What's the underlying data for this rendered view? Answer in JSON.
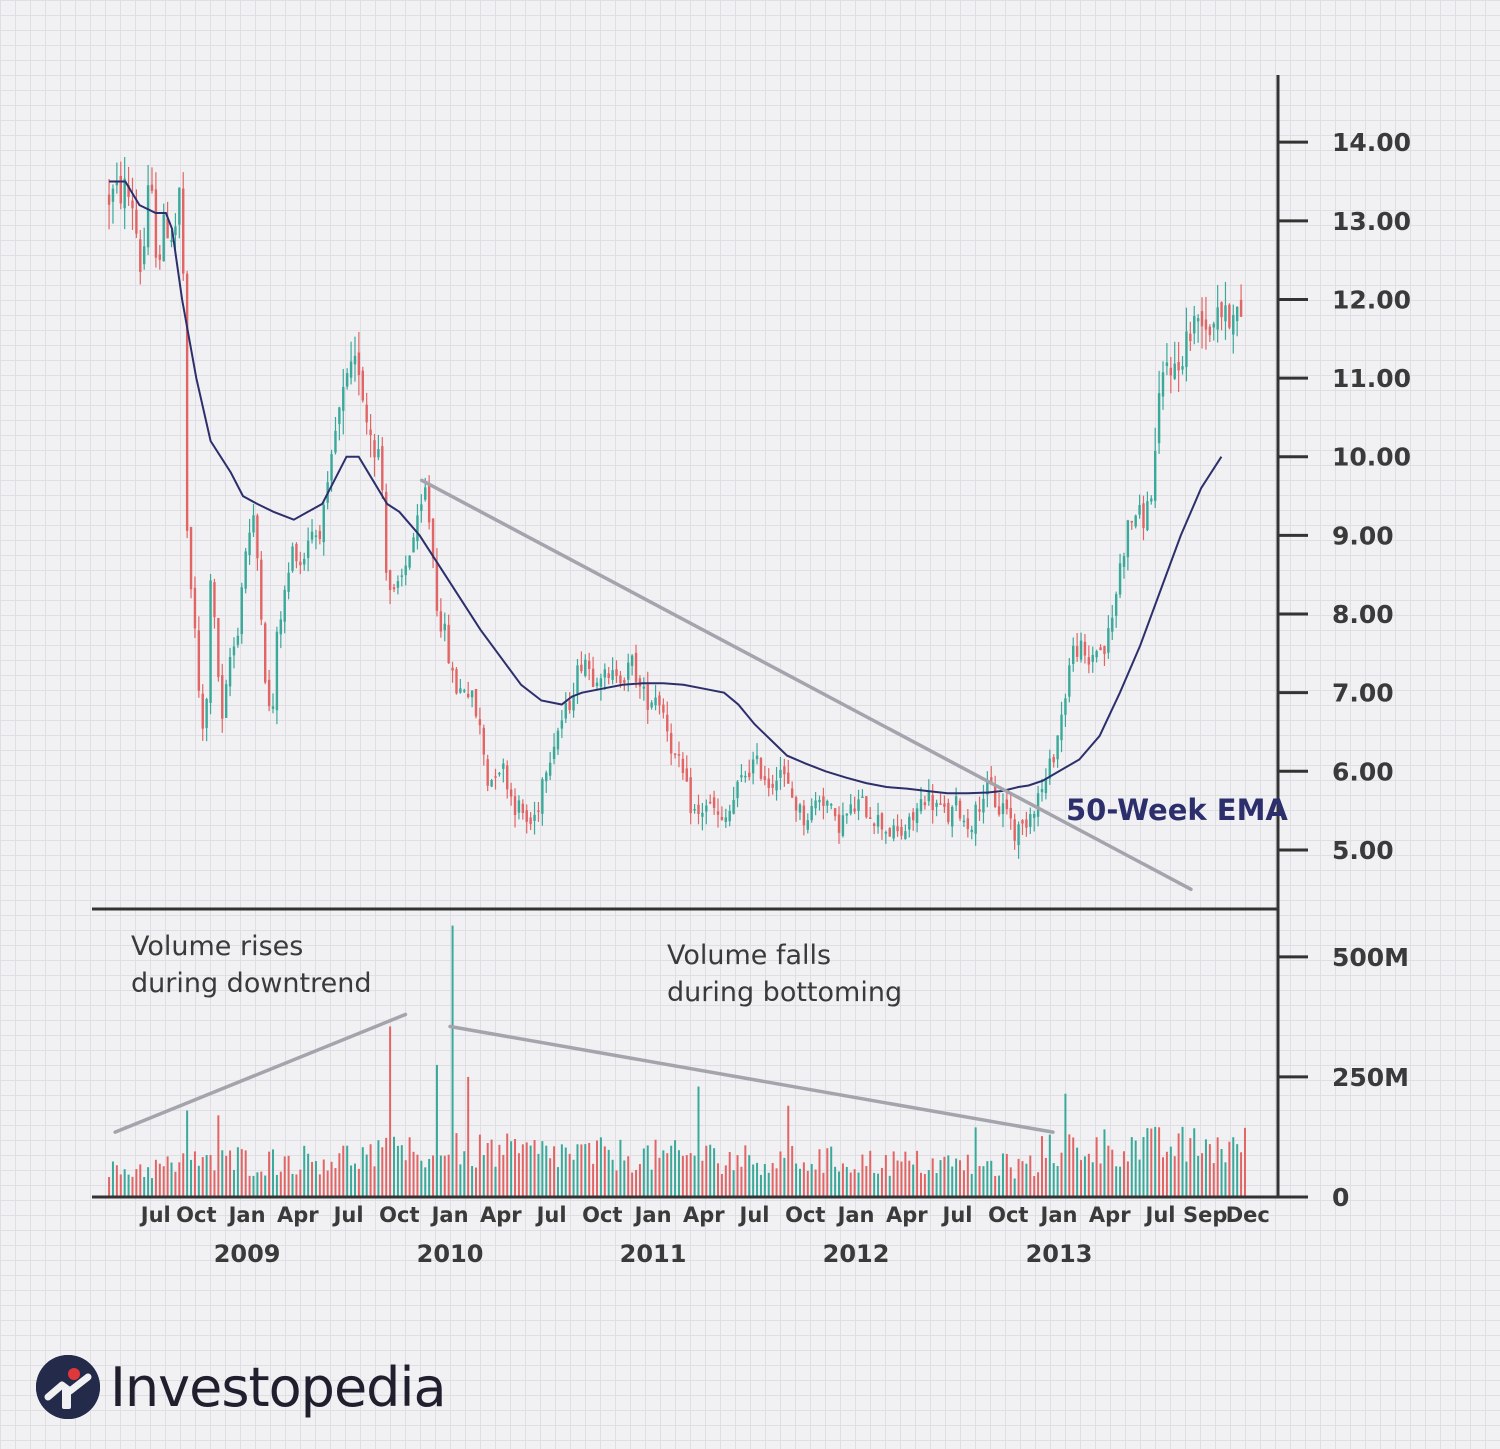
{
  "brand": {
    "name": "Investopedia",
    "accent": "#e0373b",
    "dark": "#232a4a"
  },
  "colors": {
    "up": "#3aa99a",
    "down": "#e26566",
    "ema": "#2c2f6b",
    "trendline": "#a4a4ad",
    "axis": "#333333"
  },
  "chart_data": {
    "type": "candlestick",
    "title": "",
    "price_axis": {
      "ylim": [
        4.3,
        14.6
      ],
      "ticks": [
        "5.00",
        "6.00",
        "7.00",
        "8.00",
        "9.00",
        "10.00",
        "11.00",
        "12.00",
        "13.00",
        "14.00"
      ]
    },
    "volume_axis": {
      "ylim": [
        0,
        560
      ],
      "unit": "M",
      "ticks": [
        {
          "value": 0,
          "label": "0"
        },
        {
          "value": 250,
          "label": "250M"
        },
        {
          "value": 500,
          "label": "500M"
        }
      ]
    },
    "x_range": [
      2008.3,
      2014.0
    ],
    "x_ticks": [
      {
        "x": 2008.55,
        "label": "Jul"
      },
      {
        "x": 2008.75,
        "label": "Oct"
      },
      {
        "x": 2009.0,
        "label": "Jan"
      },
      {
        "x": 2009.25,
        "label": "Apr"
      },
      {
        "x": 2009.5,
        "label": "Jul"
      },
      {
        "x": 2009.75,
        "label": "Oct"
      },
      {
        "x": 2010.0,
        "label": "Jan"
      },
      {
        "x": 2010.25,
        "label": "Apr"
      },
      {
        "x": 2010.5,
        "label": "Jul"
      },
      {
        "x": 2010.75,
        "label": "Oct"
      },
      {
        "x": 2011.0,
        "label": "Jan"
      },
      {
        "x": 2011.25,
        "label": "Apr"
      },
      {
        "x": 2011.5,
        "label": "Jul"
      },
      {
        "x": 2011.75,
        "label": "Oct"
      },
      {
        "x": 2012.0,
        "label": "Jan"
      },
      {
        "x": 2012.25,
        "label": "Apr"
      },
      {
        "x": 2012.5,
        "label": "Jul"
      },
      {
        "x": 2012.75,
        "label": "Oct"
      },
      {
        "x": 2013.0,
        "label": "Jan"
      },
      {
        "x": 2013.25,
        "label": "Apr"
      },
      {
        "x": 2013.5,
        "label": "Jul"
      },
      {
        "x": 2013.72,
        "label": "Sep"
      },
      {
        "x": 2013.93,
        "label": "Dec"
      }
    ],
    "year_labels": [
      {
        "x": 2009.0,
        "label": "2009"
      },
      {
        "x": 2010.0,
        "label": "2010"
      },
      {
        "x": 2011.0,
        "label": "2011"
      },
      {
        "x": 2012.0,
        "label": "2012"
      },
      {
        "x": 2013.0,
        "label": "2013"
      }
    ],
    "price_path": [
      [
        2008.32,
        13.3
      ],
      [
        2008.4,
        13.4
      ],
      [
        2008.44,
        13.2
      ],
      [
        2008.48,
        12.3
      ],
      [
        2008.52,
        13.5
      ],
      [
        2008.56,
        12.5
      ],
      [
        2008.6,
        13.0
      ],
      [
        2008.64,
        12.8
      ],
      [
        2008.67,
        13.4
      ],
      [
        2008.69,
        12.0
      ],
      [
        2008.71,
        7.8
      ],
      [
        2008.73,
        8.5
      ],
      [
        2008.76,
        7.0
      ],
      [
        2008.78,
        6.5
      ],
      [
        2008.8,
        6.8
      ],
      [
        2008.82,
        8.5
      ],
      [
        2008.85,
        7.5
      ],
      [
        2008.88,
        6.5
      ],
      [
        2008.91,
        7.4
      ],
      [
        2008.95,
        7.7
      ],
      [
        2008.99,
        8.8
      ],
      [
        2009.03,
        9.2
      ],
      [
        2009.06,
        8.5
      ],
      [
        2009.09,
        7.2
      ],
      [
        2009.12,
        6.5
      ],
      [
        2009.15,
        7.8
      ],
      [
        2009.19,
        8.3
      ],
      [
        2009.23,
        8.9
      ],
      [
        2009.27,
        8.6
      ],
      [
        2009.31,
        9.1
      ],
      [
        2009.35,
        9.0
      ],
      [
        2009.39,
        9.4
      ],
      [
        2009.43,
        10.2
      ],
      [
        2009.47,
        10.7
      ],
      [
        2009.51,
        11.0
      ],
      [
        2009.55,
        11.2
      ],
      [
        2009.59,
        10.5
      ],
      [
        2009.63,
        10.2
      ],
      [
        2009.66,
        9.9
      ],
      [
        2009.69,
        8.4
      ],
      [
        2009.73,
        8.2
      ],
      [
        2009.77,
        8.5
      ],
      [
        2009.81,
        8.9
      ],
      [
        2009.85,
        9.2
      ],
      [
        2009.88,
        9.6
      ],
      [
        2009.91,
        8.9
      ],
      [
        2009.94,
        8.0
      ],
      [
        2009.97,
        7.8
      ],
      [
        2010.01,
        7.2
      ],
      [
        2010.04,
        7.0
      ],
      [
        2010.07,
        7.1
      ],
      [
        2010.11,
        6.9
      ],
      [
        2010.15,
        6.5
      ],
      [
        2010.19,
        5.8
      ],
      [
        2010.23,
        6.1
      ],
      [
        2010.27,
        6.0
      ],
      [
        2010.31,
        5.6
      ],
      [
        2010.35,
        5.5
      ],
      [
        2010.39,
        5.3
      ],
      [
        2010.43,
        5.5
      ],
      [
        2010.46,
        6.0
      ],
      [
        2010.5,
        6.3
      ],
      [
        2010.54,
        6.6
      ],
      [
        2010.58,
        6.8
      ],
      [
        2010.62,
        7.2
      ],
      [
        2010.66,
        7.5
      ],
      [
        2010.7,
        7.2
      ],
      [
        2010.74,
        7.3
      ],
      [
        2010.78,
        7.1
      ],
      [
        2010.82,
        7.3
      ],
      [
        2010.86,
        7.2
      ],
      [
        2010.9,
        7.4
      ],
      [
        2010.94,
        7.0
      ],
      [
        2010.98,
        6.9
      ],
      [
        2011.02,
        7.0
      ],
      [
        2011.06,
        6.7
      ],
      [
        2011.1,
        6.2
      ],
      [
        2011.14,
        6.0
      ],
      [
        2011.18,
        5.6
      ],
      [
        2011.22,
        5.4
      ],
      [
        2011.26,
        5.6
      ],
      [
        2011.3,
        5.5
      ],
      [
        2011.34,
        5.3
      ],
      [
        2011.38,
        5.5
      ],
      [
        2011.42,
        5.8
      ],
      [
        2011.46,
        6.0
      ],
      [
        2011.5,
        6.1
      ],
      [
        2011.54,
        6.0
      ],
      [
        2011.58,
        5.8
      ],
      [
        2011.62,
        6.1
      ],
      [
        2011.66,
        5.8
      ],
      [
        2011.7,
        5.6
      ],
      [
        2011.74,
        5.4
      ],
      [
        2011.78,
        5.5
      ],
      [
        2011.82,
        5.7
      ],
      [
        2011.86,
        5.6
      ],
      [
        2011.9,
        5.3
      ],
      [
        2011.94,
        5.4
      ],
      [
        2011.98,
        5.5
      ],
      [
        2012.02,
        5.6
      ],
      [
        2012.06,
        5.5
      ],
      [
        2012.1,
        5.4
      ],
      [
        2012.14,
        5.3
      ],
      [
        2012.18,
        5.2
      ],
      [
        2012.22,
        5.2
      ],
      [
        2012.26,
        5.3
      ],
      [
        2012.3,
        5.5
      ],
      [
        2012.34,
        5.7
      ],
      [
        2012.38,
        5.6
      ],
      [
        2012.42,
        5.5
      ],
      [
        2012.46,
        5.4
      ],
      [
        2012.5,
        5.6
      ],
      [
        2012.54,
        5.3
      ],
      [
        2012.58,
        5.4
      ],
      [
        2012.62,
        5.7
      ],
      [
        2012.66,
        5.8
      ],
      [
        2012.7,
        5.5
      ],
      [
        2012.74,
        5.6
      ],
      [
        2012.78,
        5.2
      ],
      [
        2012.82,
        5.3
      ],
      [
        2012.86,
        5.5
      ],
      [
        2012.9,
        5.7
      ],
      [
        2012.94,
        5.9
      ],
      [
        2012.98,
        6.3
      ],
      [
        2013.02,
        6.8
      ],
      [
        2013.06,
        7.5
      ],
      [
        2013.1,
        7.6
      ],
      [
        2013.14,
        7.3
      ],
      [
        2013.18,
        7.6
      ],
      [
        2013.22,
        7.5
      ],
      [
        2013.26,
        7.9
      ],
      [
        2013.3,
        8.6
      ],
      [
        2013.34,
        9.1
      ],
      [
        2013.38,
        9.3
      ],
      [
        2013.42,
        9.2
      ],
      [
        2013.46,
        9.6
      ],
      [
        2013.5,
        10.8
      ],
      [
        2013.54,
        11.3
      ],
      [
        2013.58,
        11.0
      ],
      [
        2013.62,
        11.5
      ],
      [
        2013.66,
        11.6
      ],
      [
        2013.7,
        11.9
      ],
      [
        2013.74,
        11.6
      ],
      [
        2013.78,
        12.0
      ],
      [
        2013.82,
        11.7
      ],
      [
        2013.86,
        12.0
      ],
      [
        2013.9,
        11.6
      ]
    ],
    "ema": {
      "label": "50-Week EMA",
      "points": [
        [
          2008.32,
          13.5
        ],
        [
          2008.4,
          13.5
        ],
        [
          2008.47,
          13.2
        ],
        [
          2008.55,
          13.1
        ],
        [
          2008.6,
          13.1
        ],
        [
          2008.63,
          12.9
        ],
        [
          2008.68,
          12.0
        ],
        [
          2008.75,
          11.0
        ],
        [
          2008.82,
          10.2
        ],
        [
          2008.92,
          9.8
        ],
        [
          2008.98,
          9.5
        ],
        [
          2009.05,
          9.4
        ],
        [
          2009.13,
          9.3
        ],
        [
          2009.23,
          9.2
        ],
        [
          2009.3,
          9.3
        ],
        [
          2009.37,
          9.4
        ],
        [
          2009.43,
          9.7
        ],
        [
          2009.49,
          10.0
        ],
        [
          2009.55,
          10.0
        ],
        [
          2009.62,
          9.7
        ],
        [
          2009.69,
          9.4
        ],
        [
          2009.75,
          9.3
        ],
        [
          2009.85,
          9.0
        ],
        [
          2009.95,
          8.6
        ],
        [
          2010.05,
          8.2
        ],
        [
          2010.15,
          7.8
        ],
        [
          2010.25,
          7.45
        ],
        [
          2010.35,
          7.1
        ],
        [
          2010.45,
          6.9
        ],
        [
          2010.55,
          6.85
        ],
        [
          2010.6,
          6.95
        ],
        [
          2010.65,
          7.0
        ],
        [
          2010.75,
          7.05
        ],
        [
          2010.85,
          7.1
        ],
        [
          2010.95,
          7.12
        ],
        [
          2011.05,
          7.12
        ],
        [
          2011.15,
          7.1
        ],
        [
          2011.25,
          7.05
        ],
        [
          2011.35,
          7.0
        ],
        [
          2011.42,
          6.85
        ],
        [
          2011.5,
          6.6
        ],
        [
          2011.58,
          6.4
        ],
        [
          2011.66,
          6.2
        ],
        [
          2011.75,
          6.1
        ],
        [
          2011.85,
          6.0
        ],
        [
          2011.95,
          5.92
        ],
        [
          2012.05,
          5.85
        ],
        [
          2012.15,
          5.8
        ],
        [
          2012.25,
          5.78
        ],
        [
          2012.35,
          5.75
        ],
        [
          2012.45,
          5.72
        ],
        [
          2012.55,
          5.72
        ],
        [
          2012.65,
          5.73
        ],
        [
          2012.72,
          5.75
        ],
        [
          2012.8,
          5.8
        ],
        [
          2012.85,
          5.82
        ],
        [
          2012.92,
          5.88
        ],
        [
          2013.0,
          6.0
        ],
        [
          2013.1,
          6.15
        ],
        [
          2013.2,
          6.45
        ],
        [
          2013.3,
          7.0
        ],
        [
          2013.4,
          7.6
        ],
        [
          2013.5,
          8.3
        ],
        [
          2013.6,
          9.0
        ],
        [
          2013.7,
          9.6
        ],
        [
          2013.8,
          10.0
        ]
      ]
    },
    "trendlines": [
      {
        "name": "price-trendline",
        "panel": "price",
        "from": [
          2009.86,
          9.7
        ],
        "to": [
          2013.65,
          4.5
        ]
      },
      {
        "name": "volume-rise-line",
        "panel": "volume",
        "from": [
          2008.35,
          135
        ],
        "to": [
          2009.78,
          380
        ]
      },
      {
        "name": "volume-fall-line",
        "panel": "volume",
        "from": [
          2010.0,
          355
        ],
        "to": [
          2012.97,
          135
        ]
      }
    ],
    "volume_spikes": [
      {
        "x": 2008.71,
        "value": 180
      },
      {
        "x": 2008.86,
        "value": 170
      },
      {
        "x": 2009.7,
        "value": 355
      },
      {
        "x": 2009.93,
        "value": 275
      },
      {
        "x": 2010.02,
        "value": 565
      },
      {
        "x": 2010.08,
        "value": 250
      },
      {
        "x": 2011.22,
        "value": 230
      },
      {
        "x": 2011.66,
        "value": 190
      },
      {
        "x": 2012.58,
        "value": 145
      },
      {
        "x": 2013.04,
        "value": 215
      }
    ],
    "annotations": {
      "volume_rises": [
        "Volume rises",
        "during downtrend"
      ],
      "volume_falls": [
        "Volume falls",
        "during bottoming"
      ]
    }
  }
}
